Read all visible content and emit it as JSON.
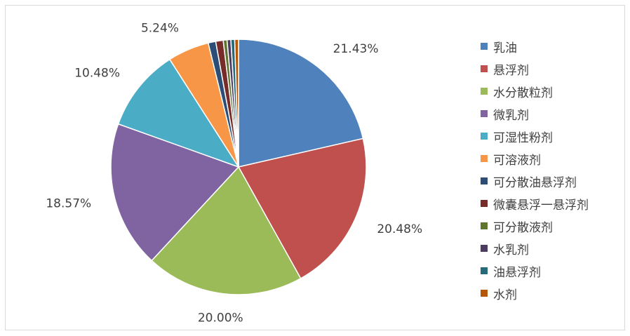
{
  "chart_data": {
    "type": "pie",
    "title": "",
    "legend_position": "right",
    "slices": [
      {
        "name": "乳油",
        "value": 21.43,
        "label": "21.43%",
        "color": "#4F81BD"
      },
      {
        "name": "悬浮剂",
        "value": 20.48,
        "label": "20.48%",
        "color": "#C0504D"
      },
      {
        "name": "水分散粒剂",
        "value": 20.0,
        "label": "20.00%",
        "color": "#9BBB59"
      },
      {
        "name": "微乳剂",
        "value": 18.57,
        "label": "18.57%",
        "color": "#8064A2"
      },
      {
        "name": "可湿性粉剂",
        "value": 10.48,
        "label": "10.48%",
        "color": "#4BACC6"
      },
      {
        "name": "可溶液剂",
        "value": 5.24,
        "label": "5.24%",
        "color": "#F79646"
      },
      {
        "name": "可分散油悬浮剂",
        "value": 0.95,
        "label": "",
        "color": "#2C4D75"
      },
      {
        "name": "微囊悬浮一悬浮剂",
        "value": 0.95,
        "label": "",
        "color": "#772C2A"
      },
      {
        "name": "可分散液剂",
        "value": 0.48,
        "label": "",
        "color": "#5F7530"
      },
      {
        "name": "水乳剂",
        "value": 0.48,
        "label": "",
        "color": "#4D3B62"
      },
      {
        "name": "油悬浮剂",
        "value": 0.48,
        "label": "",
        "color": "#276A7C"
      },
      {
        "name": "水剂",
        "value": 0.48,
        "label": "",
        "color": "#B65708"
      }
    ]
  }
}
